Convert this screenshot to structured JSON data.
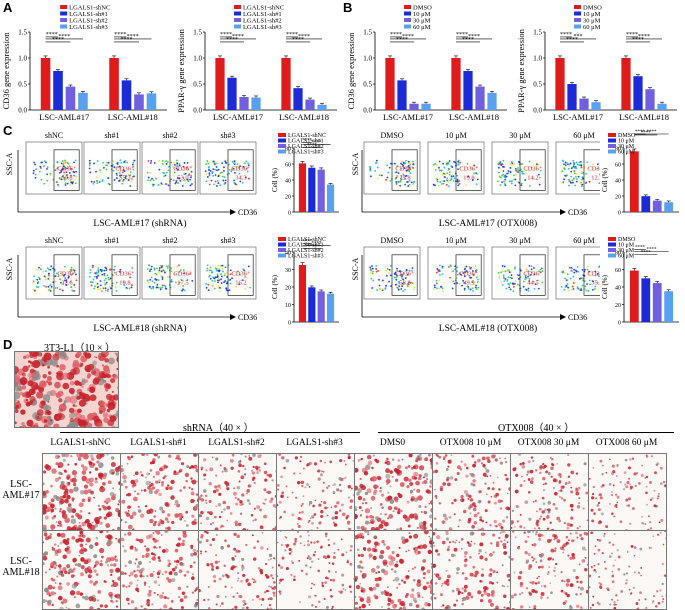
{
  "panel_labels": {
    "A": "A",
    "B": "B",
    "C": "C",
    "D": "D"
  },
  "colors": {
    "c0": "#e01b1b",
    "c1": "#1b2bd6",
    "c2": "#7060e0",
    "c3": "#5aa0f0"
  },
  "chart_data": [
    {
      "id": "A1",
      "type": "bar",
      "ylabel": "CD36 gene expression",
      "ylim": [
        0,
        1.5
      ],
      "yticks": [
        "0.0",
        "0.5",
        "1.0",
        "1.5"
      ],
      "categories": [
        "LSC-AML#17",
        "LSC-AML#18"
      ],
      "legend": [
        "LGALS1-shNC",
        "LGALS1-sh#1",
        "LGALS1-sh#2",
        "LGALS1-sh#3"
      ],
      "series": [
        {
          "name": "LGALS1-shNC",
          "values": [
            1.0,
            1.0
          ]
        },
        {
          "name": "LGALS1-sh#1",
          "values": [
            0.75,
            0.57
          ]
        },
        {
          "name": "LGALS1-sh#2",
          "values": [
            0.45,
            0.3
          ]
        },
        {
          "name": "LGALS1-sh#3",
          "values": [
            0.33,
            0.32
          ]
        }
      ],
      "sig": [
        "****",
        "****",
        "****",
        "****",
        "****",
        "****"
      ]
    },
    {
      "id": "A2",
      "type": "bar",
      "ylabel": "PPAR-γ gene expression",
      "ylim": [
        0,
        1.5
      ],
      "yticks": [
        "0.0",
        "0.5",
        "1.0",
        "1.5"
      ],
      "categories": [
        "LSC-AML#17",
        "LSC-AML#18"
      ],
      "legend": [
        "LGALS1-shNC",
        "LGALS1-sh#1",
        "LGALS1-sh#2",
        "LGALS1-sh#3"
      ],
      "series": [
        {
          "name": "LGALS1-shNC",
          "values": [
            1.0,
            1.0
          ]
        },
        {
          "name": "LGALS1-sh#1",
          "values": [
            0.62,
            0.42
          ]
        },
        {
          "name": "LGALS1-sh#2",
          "values": [
            0.25,
            0.2
          ]
        },
        {
          "name": "LGALS1-sh#3",
          "values": [
            0.24,
            0.1
          ]
        }
      ],
      "sig": [
        "****",
        "****",
        "****",
        "****",
        "****",
        "****"
      ]
    },
    {
      "id": "B1",
      "type": "bar",
      "ylabel": "CD36 gene expression",
      "ylim": [
        0,
        1.5
      ],
      "yticks": [
        "0.0",
        "0.5",
        "1.0",
        "1.5"
      ],
      "categories": [
        "LSC-AML#17",
        "LSC-AML#18"
      ],
      "legend": [
        "DMSO",
        "10 μM",
        "30 μM",
        "60 μM"
      ],
      "series": [
        {
          "name": "DMSO",
          "values": [
            1.0,
            1.0
          ]
        },
        {
          "name": "10 μM",
          "values": [
            0.57,
            0.75
          ]
        },
        {
          "name": "30 μM",
          "values": [
            0.12,
            0.45
          ]
        },
        {
          "name": "60 μM",
          "values": [
            0.12,
            0.33
          ]
        }
      ],
      "sig": [
        "****",
        "****",
        "****",
        "****",
        "****",
        "****"
      ]
    },
    {
      "id": "B2",
      "type": "bar",
      "ylabel": "PPAR-γ gene expression",
      "ylim": [
        0,
        1.5
      ],
      "yticks": [
        "0.0",
        "0.5",
        "1.0",
        "1.5"
      ],
      "categories": [
        "LSC-AML#17",
        "LSC-AML#18"
      ],
      "legend": [
        "DMSO",
        "10 μM",
        "30 μM",
        "60 μM"
      ],
      "series": [
        {
          "name": "DMSO",
          "values": [
            1.0,
            1.0
          ]
        },
        {
          "name": "10 μM",
          "values": [
            0.5,
            0.65
          ]
        },
        {
          "name": "30 μM",
          "values": [
            0.22,
            0.4
          ]
        },
        {
          "name": "60 μM",
          "values": [
            0.15,
            0.12
          ]
        }
      ],
      "sig": [
        "****",
        "****",
        "***",
        "****",
        "****",
        "****"
      ]
    },
    {
      "id": "C1",
      "type": "bar",
      "ylabel": "Cell (%)",
      "ylim": [
        0,
        80
      ],
      "yticks": [
        "0",
        "20",
        "40",
        "60",
        "80"
      ],
      "categories": [
        ""
      ],
      "legend": [
        "LGALS1-shNC",
        "LGALS1-sh#1",
        "LGALS1-sh#2",
        "LGALS1-sh#3"
      ],
      "series": [
        {
          "name": "LGALS1-shNC",
          "values": [
            60.8
          ]
        },
        {
          "name": "LGALS1-sh#1",
          "values": [
            55.3
          ]
        },
        {
          "name": "LGALS1-sh#2",
          "values": [
            53.0
          ]
        },
        {
          "name": "LGALS1-sh#3",
          "values": [
            34.3
          ]
        }
      ],
      "sig": [
        "****",
        "****",
        "****"
      ]
    },
    {
      "id": "C2",
      "type": "bar",
      "ylabel": "Cell (%)",
      "ylim": [
        0,
        80
      ],
      "yticks": [
        "0",
        "20",
        "40",
        "60",
        "80"
      ],
      "categories": [
        ""
      ],
      "legend": [
        "DMSO",
        "10 μM",
        "30 μM",
        "60 μM"
      ],
      "series": [
        {
          "name": "DMSO",
          "values": [
            75.8
          ]
        },
        {
          "name": "10 μM",
          "values": [
            19.8
          ]
        },
        {
          "name": "30 μM",
          "values": [
            14.2
          ]
        },
        {
          "name": "60 μM",
          "values": [
            12.2
          ]
        }
      ],
      "sig": [
        "****",
        "****",
        "****"
      ]
    },
    {
      "id": "C3",
      "type": "bar",
      "ylabel": "Cell (%)",
      "ylim": [
        0,
        40
      ],
      "yticks": [
        "0",
        "10",
        "20",
        "30",
        "40"
      ],
      "categories": [
        ""
      ],
      "legend": [
        "LGALS1-shNC",
        "LGALS1-sh#1",
        "LGALS1-sh#2",
        "LGALS1-sh#3"
      ],
      "series": [
        {
          "name": "LGALS1-shNC",
          "values": [
            32.6
          ]
        },
        {
          "name": "LGALS1-sh#1",
          "values": [
            19.8
          ]
        },
        {
          "name": "LGALS1-sh#2",
          "values": [
            17.5
          ]
        },
        {
          "name": "LGALS1-sh#3",
          "values": [
            16.2
          ]
        }
      ],
      "sig": [
        "****",
        "****",
        "****"
      ]
    },
    {
      "id": "C4",
      "type": "bar",
      "ylabel": "Cell (%)",
      "ylim": [
        0,
        80
      ],
      "yticks": [
        "0",
        "20",
        "40",
        "60",
        "80"
      ],
      "categories": [
        ""
      ],
      "legend": [
        "DMSO",
        "10 μM",
        "30 μM",
        "60 μM"
      ],
      "series": [
        {
          "name": "DMSO",
          "values": [
            58.8
          ]
        },
        {
          "name": "10 μM",
          "values": [
            49.9
          ]
        },
        {
          "name": "30 μM",
          "values": [
            44.5
          ]
        },
        {
          "name": "60 μM",
          "values": [
            35.2
          ]
        }
      ],
      "sig": [
        "****",
        "****",
        "****"
      ]
    }
  ],
  "flow": {
    "axis_y": "SSC-A",
    "axis_x": "CD36",
    "gate_label": "CD36⁺",
    "row1_left": {
      "titles": [
        "shNC",
        "sh#1",
        "sh#2",
        "sh#3"
      ],
      "values": [
        "60.8",
        "55.3",
        "53.0",
        "34.3"
      ],
      "caption": "LSC-AML#17 (shRNA)"
    },
    "row1_right": {
      "titles": [
        "DMSO",
        "10 μM",
        "30 μM",
        "60 μM"
      ],
      "values": [
        "75.8",
        "19.8",
        "14.2",
        "12.2"
      ],
      "caption": "LSC-AML#17 (OTX008)"
    },
    "row2_left": {
      "titles": [
        "shNC",
        "sh#1",
        "sh#2",
        "sh#3"
      ],
      "values": [
        "32.6",
        "19.8",
        "17.5",
        "16.2"
      ],
      "caption": "LSC-AML#18 (shRNA)"
    },
    "row2_right": {
      "titles": [
        "DMSO",
        "10 μM",
        "30 μM",
        "60 μM"
      ],
      "values": [
        "58.8",
        "49.9",
        "44.5",
        "35.2"
      ],
      "caption": "LSC-AML#18 (OTX008)"
    }
  },
  "panel_d": {
    "ref_title": "3T3-L1（10 × ）",
    "shrna_title": "shRNA（40 × ）",
    "otx_title": "OTX008（40 × ）",
    "columns": [
      "LGALS1-shNC",
      "LGALS1-sh#1",
      "LGALS1-sh#2",
      "LGALS1-sh#3",
      "DMS0",
      "OTX008 10 μM",
      "OTX008 30 μM",
      "OTX008 60 μM"
    ],
    "rows": [
      [
        "LSC-",
        "AML#17"
      ],
      [
        "LSC-",
        "AML#18"
      ]
    ],
    "density_row1": [
      1.0,
      0.75,
      0.55,
      0.45,
      0.9,
      0.55,
      0.5,
      0.35
    ],
    "density_row2": [
      0.85,
      0.65,
      0.45,
      0.35,
      0.8,
      0.6,
      0.55,
      0.3
    ]
  }
}
